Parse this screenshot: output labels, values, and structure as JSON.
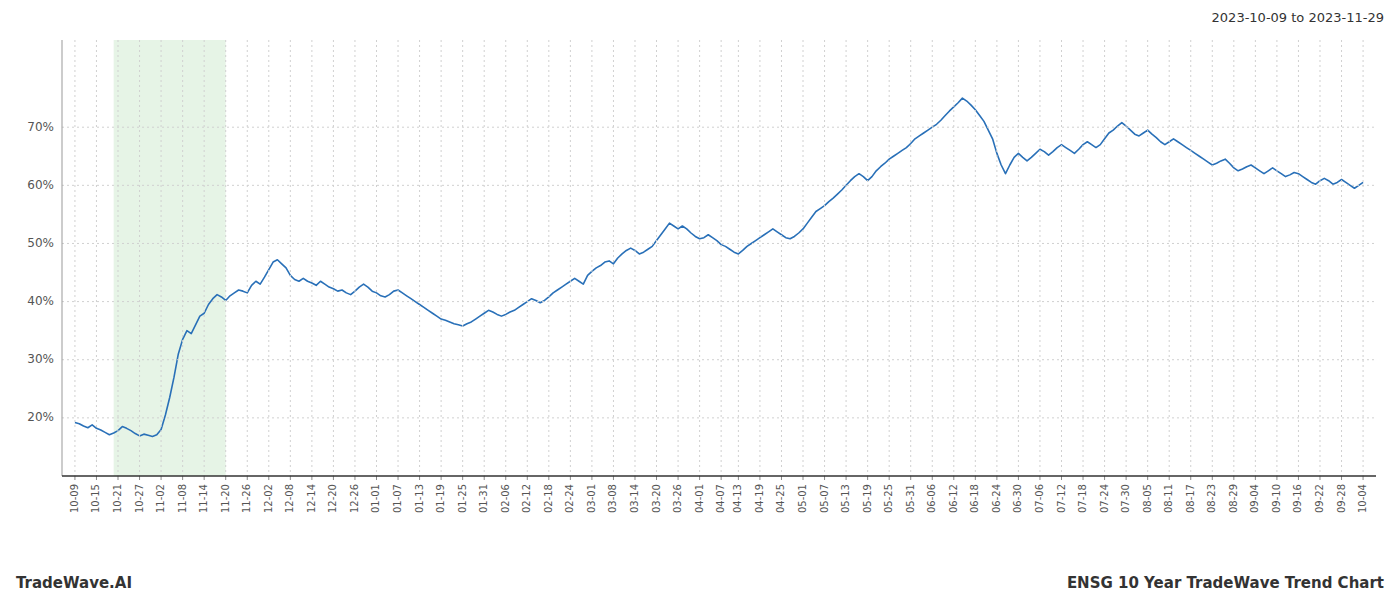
{
  "chart_data": {
    "type": "line",
    "title": "ENSG 10 Year TradeWave Trend Chart",
    "subtitle": "2023-10-09 to 2023-11-29",
    "annotations": [
      "TradeWave.AI"
    ],
    "color": "#2970b8",
    "grid": true,
    "shade": {
      "start": 9,
      "end": 35,
      "color": "#c8e6c8"
    },
    "ylim": [
      10,
      85
    ],
    "yticks": [
      {
        "value": 20,
        "label": "20%"
      },
      {
        "value": 30,
        "label": "30%"
      },
      {
        "value": 40,
        "label": "40%"
      },
      {
        "value": 50,
        "label": "50%"
      },
      {
        "value": 60,
        "label": "60%"
      },
      {
        "value": 70,
        "label": "70%"
      }
    ],
    "categories": [
      "10-09",
      null,
      null,
      null,
      null,
      "10-15",
      null,
      null,
      null,
      null,
      "10-21",
      null,
      null,
      null,
      null,
      "10-27",
      null,
      null,
      null,
      null,
      "11-02",
      null,
      null,
      null,
      null,
      "11-08",
      null,
      null,
      null,
      null,
      "11-14",
      null,
      null,
      null,
      null,
      "11-20",
      null,
      null,
      null,
      null,
      "11-26",
      null,
      null,
      null,
      null,
      "12-02",
      null,
      null,
      null,
      null,
      "12-08",
      null,
      null,
      null,
      null,
      "12-14",
      null,
      null,
      null,
      null,
      "12-20",
      null,
      null,
      null,
      null,
      "12-26",
      null,
      null,
      null,
      null,
      "01-01",
      null,
      null,
      null,
      null,
      "01-07",
      null,
      null,
      null,
      null,
      "01-13",
      null,
      null,
      null,
      null,
      "01-19",
      null,
      null,
      null,
      null,
      "01-25",
      null,
      null,
      null,
      null,
      "01-31",
      null,
      null,
      null,
      null,
      "02-06",
      null,
      null,
      null,
      null,
      "02-12",
      null,
      null,
      null,
      null,
      "02-18",
      null,
      null,
      null,
      null,
      "02-24",
      null,
      null,
      null,
      null,
      "03-01",
      null,
      null,
      null,
      null,
      "03-08",
      null,
      null,
      null,
      null,
      "03-14",
      null,
      null,
      null,
      null,
      "03-20",
      null,
      null,
      null,
      null,
      "03-26",
      null,
      null,
      null,
      null,
      "04-01",
      null,
      null,
      null,
      null,
      "04-07",
      null,
      null,
      null,
      "04-13",
      null,
      null,
      null,
      null,
      "04-19",
      null,
      null,
      null,
      null,
      "04-25",
      null,
      null,
      null,
      null,
      "05-01",
      null,
      null,
      null,
      null,
      "05-07",
      null,
      null,
      null,
      null,
      "05-13",
      null,
      null,
      null,
      null,
      "05-19",
      null,
      null,
      null,
      null,
      "05-25",
      null,
      null,
      null,
      null,
      "05-31",
      null,
      null,
      null,
      null,
      "06-06",
      null,
      null,
      null,
      null,
      "06-12",
      null,
      null,
      null,
      null,
      "06-18",
      null,
      null,
      null,
      null,
      "06-24",
      null,
      null,
      null,
      null,
      "06-30",
      null,
      null,
      null,
      null,
      "07-06",
      null,
      null,
      null,
      null,
      "07-12",
      null,
      null,
      null,
      null,
      "07-18",
      null,
      null,
      null,
      null,
      "07-24",
      null,
      null,
      null,
      null,
      "07-30",
      null,
      null,
      null,
      null,
      "08-05",
      null,
      null,
      null,
      null,
      "08-11",
      null,
      null,
      null,
      null,
      "08-17",
      null,
      null,
      null,
      null,
      "08-23",
      null,
      null,
      null,
      null,
      "08-29",
      null,
      null,
      null,
      null,
      "09-04",
      null,
      null,
      null,
      null,
      "09-10",
      null,
      null,
      null,
      null,
      "09-16",
      null,
      null,
      null,
      null,
      "09-22",
      null,
      null,
      null,
      null,
      "09-28",
      null,
      null,
      null,
      null,
      "10-04"
    ],
    "values": [
      19.2,
      19.0,
      18.6,
      18.3,
      18.8,
      18.2,
      17.9,
      17.5,
      17.1,
      17.4,
      17.8,
      18.5,
      18.2,
      17.8,
      17.3,
      16.9,
      17.2,
      17.0,
      16.8,
      17.1,
      18.0,
      20.5,
      23.5,
      27.0,
      31.0,
      33.5,
      35.0,
      34.5,
      36.0,
      37.5,
      38.0,
      39.5,
      40.5,
      41.2,
      40.8,
      40.2,
      41.0,
      41.5,
      42.0,
      41.8,
      41.5,
      42.8,
      43.5,
      43.0,
      44.2,
      45.5,
      46.8,
      47.2,
      46.5,
      45.8,
      44.5,
      43.8,
      43.5,
      44.0,
      43.5,
      43.2,
      42.8,
      43.5,
      43.0,
      42.5,
      42.2,
      41.8,
      42.0,
      41.5,
      41.2,
      41.8,
      42.5,
      43.0,
      42.5,
      41.8,
      41.5,
      41.0,
      40.8,
      41.2,
      41.8,
      42.0,
      41.5,
      41.0,
      40.5,
      40.0,
      39.5,
      39.0,
      38.5,
      38.0,
      37.5,
      37.0,
      36.8,
      36.5,
      36.2,
      36.0,
      35.8,
      36.2,
      36.5,
      37.0,
      37.5,
      38.0,
      38.5,
      38.2,
      37.8,
      37.5,
      37.8,
      38.2,
      38.5,
      39.0,
      39.5,
      40.0,
      40.5,
      40.2,
      39.8,
      40.2,
      40.8,
      41.5,
      42.0,
      42.5,
      43.0,
      43.5,
      44.0,
      43.5,
      43.0,
      44.5,
      45.2,
      45.8,
      46.2,
      46.8,
      47.0,
      46.5,
      47.5,
      48.2,
      48.8,
      49.2,
      48.8,
      48.2,
      48.5,
      49.0,
      49.5,
      50.5,
      51.5,
      52.5,
      53.5,
      53.0,
      52.5,
      53.0,
      52.5,
      51.8,
      51.2,
      50.8,
      51.0,
      51.5,
      51.0,
      50.5,
      49.8,
      49.5,
      49.0,
      48.5,
      48.2,
      48.8,
      49.5,
      50.0,
      50.5,
      51.0,
      51.5,
      52.0,
      52.5,
      52.0,
      51.5,
      51.0,
      50.8,
      51.2,
      51.8,
      52.5,
      53.5,
      54.5,
      55.5,
      56.0,
      56.5,
      57.2,
      57.8,
      58.5,
      59.2,
      60.0,
      60.8,
      61.5,
      62.0,
      61.5,
      60.8,
      61.5,
      62.5,
      63.2,
      63.8,
      64.5,
      65.0,
      65.5,
      66.0,
      66.5,
      67.2,
      68.0,
      68.5,
      69.0,
      69.5,
      70.0,
      70.5,
      71.2,
      72.0,
      72.8,
      73.5,
      74.2,
      75.0,
      74.5,
      73.8,
      73.0,
      72.0,
      71.0,
      69.5,
      68.0,
      65.5,
      63.5,
      62.0,
      63.5,
      64.8,
      65.5,
      64.8,
      64.2,
      64.8,
      65.5,
      66.2,
      65.8,
      65.2,
      65.8,
      66.5,
      67.0,
      66.5,
      66.0,
      65.5,
      66.2,
      67.0,
      67.5,
      67.0,
      66.5,
      67.0,
      68.0,
      69.0,
      69.5,
      70.2,
      70.8,
      70.2,
      69.5,
      68.8,
      68.5,
      69.0,
      69.5,
      68.8,
      68.2,
      67.5,
      67.0,
      67.5,
      68.0,
      67.5,
      67.0,
      66.5,
      66.0,
      65.5,
      65.0,
      64.5,
      64.0,
      63.5,
      63.8,
      64.2,
      64.5,
      63.8,
      63.0,
      62.5,
      62.8,
      63.2,
      63.5,
      63.0,
      62.5,
      62.0,
      62.5,
      63.0,
      62.5,
      62.0,
      61.5,
      61.8,
      62.2,
      62.0,
      61.5,
      61.0,
      60.5,
      60.2,
      60.8,
      61.2,
      60.8,
      60.2,
      60.5,
      61.0,
      60.5,
      60.0,
      59.5,
      60.0,
      60.5
    ]
  }
}
